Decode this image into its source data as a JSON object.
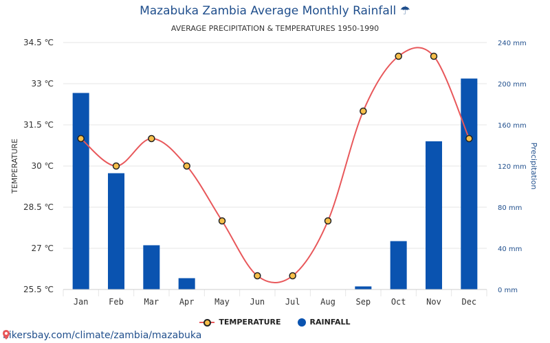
{
  "header": {
    "title": "Mazabuka Zambia Average Monthly Rainfall ☂",
    "subtitle": "AVERAGE PRECIPITATION & TEMPERATURES 1950-1990"
  },
  "legend": {
    "temperature_label": "TEMPERATURE",
    "rainfall_label": "RAINFALL"
  },
  "footer": {
    "source_text": "hikersbay.com/climate/zambia/mazabuka"
  },
  "colors": {
    "bar": "#0a53b0",
    "line": "#e8575a",
    "marker_fill": "#f7bf4a",
    "marker_stroke": "#222222",
    "grid": "#e6e6e6",
    "right_axis_text": "#1f4e8c"
  },
  "chart_data": {
    "type": "bar",
    "categories": [
      "Jan",
      "Feb",
      "Mar",
      "Apr",
      "May",
      "Jun",
      "Jul",
      "Aug",
      "Sep",
      "Oct",
      "Nov",
      "Dec"
    ],
    "series": [
      {
        "name": "RAINFALL",
        "type": "bar",
        "axis": "right",
        "unit": "mm",
        "values": [
          191,
          113,
          43,
          11,
          0,
          0,
          0,
          0,
          3,
          47,
          144,
          205
        ]
      },
      {
        "name": "TEMPERATURE",
        "type": "line",
        "axis": "left",
        "unit": "℃",
        "values": [
          31,
          30,
          31,
          30,
          28,
          26,
          26,
          28,
          32,
          34,
          34,
          31
        ]
      }
    ],
    "ylabel_left": "TEMPERATURE",
    "ylabel_right": "Precipitation",
    "ylim_left": [
      25.5,
      34.5
    ],
    "ylim_right": [
      0,
      240
    ],
    "left_ticks": [
      "25.5 ℃",
      "27 ℃",
      "28.5 ℃",
      "30 ℃",
      "31.5 ℃",
      "33 ℃",
      "34.5 ℃"
    ],
    "right_ticks": [
      "0 mm",
      "40 mm",
      "80 mm",
      "120 mm",
      "160 mm",
      "200 mm",
      "240 mm"
    ],
    "grid": true,
    "legend_position": "bottom"
  }
}
